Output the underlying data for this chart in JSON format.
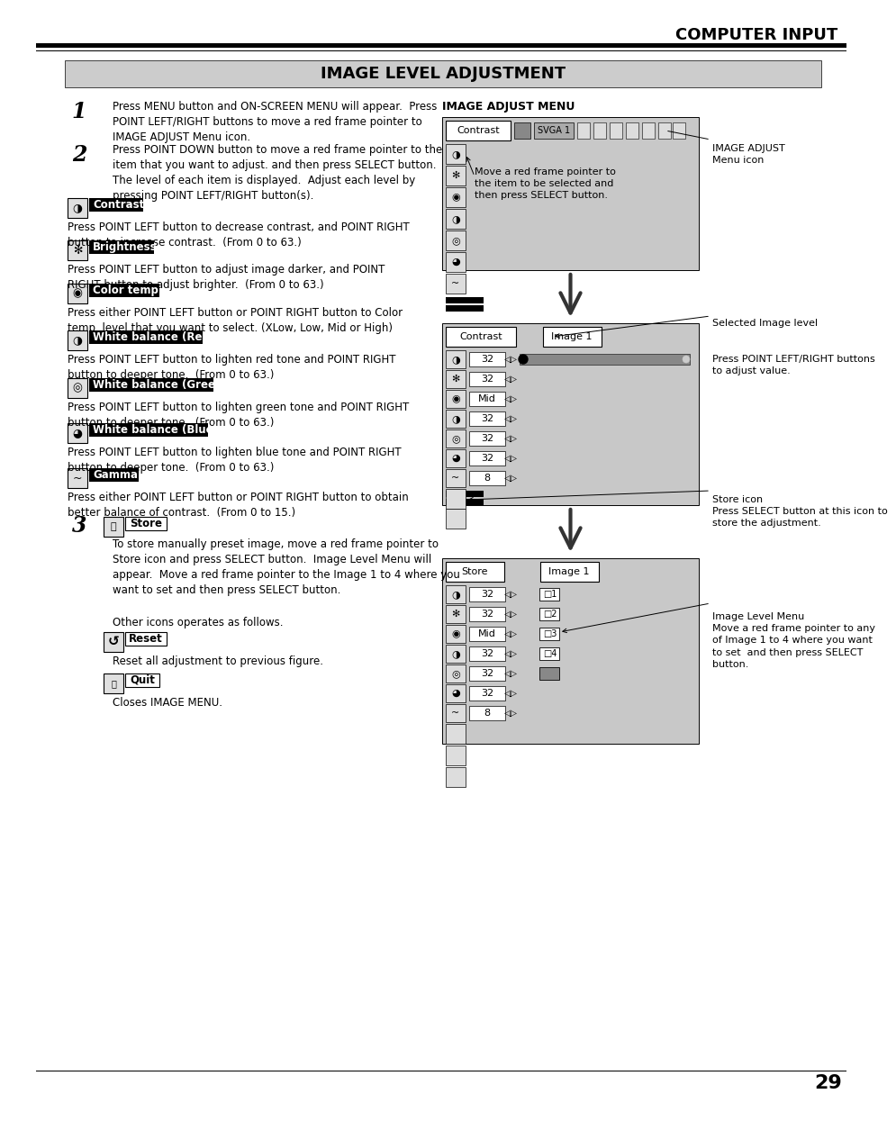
{
  "page_title": "COMPUTER INPUT",
  "section_title": "IMAGE LEVEL ADJUSTMENT",
  "bg_color": "#ffffff",
  "section_bg": "#cccccc",
  "step1_num": "1",
  "step1_text": "Press MENU button and ON-SCREEN MENU will appear.  Press\nPOINT LEFT/RIGHT buttons to move a red frame pointer to\nIMAGE ADJUST Menu icon.",
  "step2_num": "2",
  "step2_text": "Press POINT DOWN button to move a red frame pointer to the\nitem that you want to adjust. and then press SELECT button.\nThe level of each item is displayed.  Adjust each level by\npressing POINT LEFT/RIGHT button(s).",
  "items": [
    {
      "label": "Contrast",
      "desc": "Press POINT LEFT button to decrease contrast, and POINT RIGHT\nbutton to increase contrast.  (From 0 to 63.)"
    },
    {
      "label": "Brightness",
      "desc": "Press POINT LEFT button to adjust image darker, and POINT\nRIGHT button to adjust brighter.  (From 0 to 63.)"
    },
    {
      "label": "Color temp.",
      "desc": "Press either POINT LEFT button or POINT RIGHT button to Color\ntemp. level that you want to select. (XLow, Low, Mid or High)"
    },
    {
      "label": "White balance (Red)",
      "desc": "Press POINT LEFT button to lighten red tone and POINT RIGHT\nbutton to deeper tone.  (From 0 to 63.)"
    },
    {
      "label": "White balance (Green)",
      "desc": "Press POINT LEFT button to lighten green tone and POINT RIGHT\nbutton to deeper tone.  (From 0 to 63.)"
    },
    {
      "label": "White balance (Blue)",
      "desc": "Press POINT LEFT button to lighten blue tone and POINT RIGHT\nbutton to deeper tone.  (From 0 to 63.)"
    },
    {
      "label": "Gamma",
      "desc": "Press either POINT LEFT button or POINT RIGHT button to obtain\nbetter balance of contrast.  (From 0 to 15.)"
    }
  ],
  "step3_num": "3",
  "step3_label": "Store",
  "step3_text": "To store manually preset image, move a red frame pointer to\nStore icon and press SELECT button.  Image Level Menu will\nappear.  Move a red frame pointer to the Image 1 to 4 where you\nwant to set and then press SELECT button.",
  "other_icons_text": "Other icons operates as follows.",
  "reset_label": "Reset",
  "reset_desc": "Reset all adjustment to previous figure.",
  "quit_label": "Quit",
  "quit_desc": "Closes IMAGE MENU.",
  "right_panel_title": "IMAGE ADJUST MENU",
  "right_note1": "Move a red frame pointer to\nthe item to be selected and\nthen press SELECT button.",
  "right_note2": "IMAGE ADJUST\nMenu icon",
  "right_note3": "Selected Image level",
  "right_note4": "Press POINT LEFT/RIGHT buttons\nto adjust value.",
  "right_note5": "Store icon\nPress SELECT button at this icon to\nstore the adjustment.",
  "right_note6": "Image Level Menu\nMove a red frame pointer to any\nof Image 1 to 4 where you want\nto set  and then press SELECT\nbutton.",
  "page_num": "29",
  "val_labels": [
    "32",
    "32",
    "Mid",
    "32",
    "32",
    "32",
    "8"
  ]
}
